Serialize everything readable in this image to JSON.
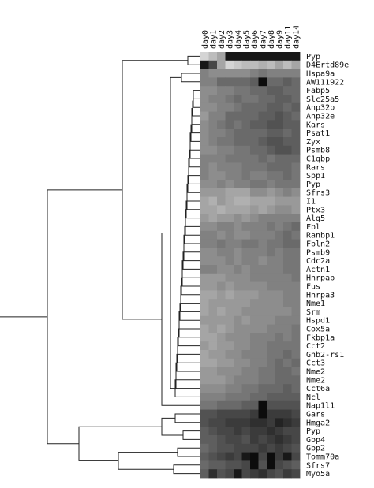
{
  "chart_data": {
    "type": "heatmap",
    "title": "",
    "colormap": "grayscale",
    "columns": [
      "day0",
      "day1",
      "day2",
      "day3",
      "day4",
      "day5",
      "day6",
      "day7",
      "day8",
      "day9",
      "day11",
      "day14"
    ],
    "rows": [
      "Pyp",
      "D4Ertd89e",
      "Hspa9a",
      "AW111922",
      "Fabp5",
      "Slc25a5",
      "Anp32b",
      "Anp32e",
      "Kars",
      "Psat1",
      "Zyx",
      "Psmb8",
      "C1qbp",
      "Rars",
      "Spp1",
      "Pyp",
      "Sfrs3",
      "I1",
      "Ptx3",
      "Alg5",
      "Fbl",
      "Ranbp1",
      "Fbln2",
      "Psmb9",
      "Cdc2a",
      "Actn1",
      "Hnrpab",
      "Fus",
      "Hnrpa3",
      "Nme1",
      "Srm",
      "Hspd1",
      "Cox5a",
      "Fkbp1a",
      "Cct2",
      "Gnb2-rs1",
      "Cct3",
      "Nme2",
      "Nme2",
      "Cct6a",
      "Ncl",
      "Nap1l1",
      "Gars",
      "Hmga2",
      "Pyp",
      "Gbp4",
      "Gbp2",
      "Tomm70a",
      "Sfrs7",
      "Myo5a"
    ],
    "values": [
      [
        0.9,
        0.8,
        0.7,
        0.1,
        0.1,
        0.1,
        0.1,
        0.1,
        0.1,
        0.1,
        0.1,
        0.1
      ],
      [
        0.1,
        0.3,
        0.7,
        0.9,
        0.85,
        0.8,
        0.8,
        0.75,
        0.8,
        0.7,
        0.8,
        0.7
      ],
      [
        0.55,
        0.6,
        0.6,
        0.6,
        0.6,
        0.6,
        0.55,
        0.5,
        0.55,
        0.55,
        0.55,
        0.55
      ],
      [
        0.55,
        0.55,
        0.45,
        0.45,
        0.45,
        0.45,
        0.4,
        0.05,
        0.45,
        0.45,
        0.4,
        0.45
      ],
      [
        0.6,
        0.6,
        0.55,
        0.55,
        0.5,
        0.5,
        0.45,
        0.45,
        0.4,
        0.4,
        0.45,
        0.45
      ],
      [
        0.6,
        0.55,
        0.55,
        0.5,
        0.45,
        0.5,
        0.5,
        0.45,
        0.45,
        0.4,
        0.4,
        0.45
      ],
      [
        0.6,
        0.6,
        0.55,
        0.55,
        0.5,
        0.45,
        0.45,
        0.45,
        0.4,
        0.4,
        0.45,
        0.4
      ],
      [
        0.65,
        0.55,
        0.55,
        0.45,
        0.45,
        0.45,
        0.45,
        0.4,
        0.4,
        0.35,
        0.4,
        0.45
      ],
      [
        0.6,
        0.55,
        0.5,
        0.45,
        0.5,
        0.45,
        0.4,
        0.4,
        0.35,
        0.35,
        0.4,
        0.4
      ],
      [
        0.6,
        0.55,
        0.55,
        0.5,
        0.45,
        0.45,
        0.45,
        0.45,
        0.4,
        0.4,
        0.45,
        0.4
      ],
      [
        0.6,
        0.55,
        0.5,
        0.5,
        0.45,
        0.45,
        0.45,
        0.4,
        0.35,
        0.35,
        0.4,
        0.4
      ],
      [
        0.6,
        0.6,
        0.55,
        0.55,
        0.5,
        0.5,
        0.45,
        0.45,
        0.4,
        0.35,
        0.35,
        0.4
      ],
      [
        0.55,
        0.55,
        0.55,
        0.5,
        0.5,
        0.5,
        0.5,
        0.45,
        0.5,
        0.45,
        0.45,
        0.45
      ],
      [
        0.55,
        0.6,
        0.55,
        0.55,
        0.55,
        0.5,
        0.5,
        0.5,
        0.45,
        0.45,
        0.45,
        0.5
      ],
      [
        0.55,
        0.6,
        0.6,
        0.55,
        0.55,
        0.5,
        0.55,
        0.55,
        0.5,
        0.5,
        0.45,
        0.5
      ],
      [
        0.6,
        0.6,
        0.55,
        0.6,
        0.55,
        0.55,
        0.5,
        0.5,
        0.55,
        0.5,
        0.5,
        0.5
      ],
      [
        0.65,
        0.65,
        0.65,
        0.7,
        0.7,
        0.7,
        0.6,
        0.6,
        0.65,
        0.6,
        0.55,
        0.6
      ],
      [
        0.7,
        0.75,
        0.65,
        0.7,
        0.75,
        0.75,
        0.7,
        0.7,
        0.7,
        0.65,
        0.65,
        0.65
      ],
      [
        0.7,
        0.7,
        0.75,
        0.7,
        0.7,
        0.7,
        0.65,
        0.7,
        0.65,
        0.6,
        0.6,
        0.65
      ],
      [
        0.65,
        0.7,
        0.65,
        0.65,
        0.6,
        0.65,
        0.6,
        0.55,
        0.55,
        0.55,
        0.55,
        0.55
      ],
      [
        0.6,
        0.6,
        0.55,
        0.55,
        0.6,
        0.55,
        0.55,
        0.55,
        0.5,
        0.55,
        0.5,
        0.45
      ],
      [
        0.55,
        0.55,
        0.6,
        0.55,
        0.6,
        0.6,
        0.55,
        0.55,
        0.55,
        0.5,
        0.45,
        0.5
      ],
      [
        0.55,
        0.55,
        0.5,
        0.55,
        0.55,
        0.5,
        0.5,
        0.55,
        0.5,
        0.5,
        0.45,
        0.45
      ],
      [
        0.6,
        0.6,
        0.55,
        0.55,
        0.6,
        0.55,
        0.55,
        0.55,
        0.5,
        0.55,
        0.5,
        0.5
      ],
      [
        0.6,
        0.6,
        0.6,
        0.55,
        0.6,
        0.55,
        0.55,
        0.6,
        0.55,
        0.55,
        0.5,
        0.5
      ],
      [
        0.55,
        0.55,
        0.6,
        0.6,
        0.55,
        0.6,
        0.55,
        0.55,
        0.55,
        0.55,
        0.5,
        0.5
      ],
      [
        0.65,
        0.65,
        0.65,
        0.6,
        0.6,
        0.6,
        0.55,
        0.55,
        0.55,
        0.55,
        0.55,
        0.5
      ],
      [
        0.65,
        0.65,
        0.6,
        0.65,
        0.6,
        0.6,
        0.6,
        0.6,
        0.55,
        0.55,
        0.55,
        0.55
      ],
      [
        0.7,
        0.7,
        0.65,
        0.7,
        0.65,
        0.65,
        0.65,
        0.6,
        0.6,
        0.6,
        0.55,
        0.55
      ],
      [
        0.7,
        0.65,
        0.65,
        0.65,
        0.65,
        0.65,
        0.6,
        0.6,
        0.6,
        0.6,
        0.55,
        0.55
      ],
      [
        0.7,
        0.65,
        0.7,
        0.65,
        0.65,
        0.6,
        0.6,
        0.6,
        0.6,
        0.6,
        0.6,
        0.55
      ],
      [
        0.65,
        0.65,
        0.65,
        0.65,
        0.6,
        0.65,
        0.6,
        0.6,
        0.6,
        0.55,
        0.55,
        0.55
      ],
      [
        0.7,
        0.65,
        0.7,
        0.65,
        0.6,
        0.6,
        0.6,
        0.6,
        0.55,
        0.55,
        0.55,
        0.5
      ],
      [
        0.7,
        0.7,
        0.65,
        0.6,
        0.6,
        0.6,
        0.55,
        0.55,
        0.55,
        0.5,
        0.55,
        0.5
      ],
      [
        0.65,
        0.7,
        0.65,
        0.65,
        0.6,
        0.6,
        0.55,
        0.55,
        0.5,
        0.5,
        0.5,
        0.5
      ],
      [
        0.7,
        0.65,
        0.65,
        0.6,
        0.6,
        0.55,
        0.55,
        0.55,
        0.5,
        0.5,
        0.45,
        0.5
      ],
      [
        0.7,
        0.7,
        0.65,
        0.65,
        0.6,
        0.6,
        0.55,
        0.55,
        0.5,
        0.45,
        0.5,
        0.45
      ],
      [
        0.65,
        0.65,
        0.6,
        0.6,
        0.6,
        0.55,
        0.55,
        0.5,
        0.5,
        0.45,
        0.45,
        0.5
      ],
      [
        0.65,
        0.65,
        0.65,
        0.6,
        0.55,
        0.55,
        0.55,
        0.5,
        0.5,
        0.45,
        0.45,
        0.45
      ],
      [
        0.6,
        0.6,
        0.6,
        0.55,
        0.55,
        0.5,
        0.5,
        0.45,
        0.45,
        0.45,
        0.4,
        0.45
      ],
      [
        0.55,
        0.55,
        0.55,
        0.5,
        0.5,
        0.5,
        0.45,
        0.45,
        0.4,
        0.4,
        0.4,
        0.4
      ],
      [
        0.5,
        0.5,
        0.45,
        0.45,
        0.45,
        0.4,
        0.4,
        0.05,
        0.35,
        0.35,
        0.35,
        0.35
      ],
      [
        0.35,
        0.35,
        0.3,
        0.3,
        0.3,
        0.3,
        0.25,
        0.05,
        0.25,
        0.25,
        0.25,
        0.3
      ],
      [
        0.35,
        0.3,
        0.3,
        0.25,
        0.25,
        0.25,
        0.2,
        0.2,
        0.25,
        0.15,
        0.2,
        0.25
      ],
      [
        0.4,
        0.35,
        0.3,
        0.3,
        0.25,
        0.3,
        0.25,
        0.25,
        0.2,
        0.25,
        0.3,
        0.3
      ],
      [
        0.4,
        0.4,
        0.35,
        0.3,
        0.3,
        0.35,
        0.25,
        0.3,
        0.25,
        0.2,
        0.25,
        0.3
      ],
      [
        0.45,
        0.4,
        0.35,
        0.35,
        0.3,
        0.3,
        0.3,
        0.25,
        0.3,
        0.25,
        0.3,
        0.35
      ],
      [
        0.4,
        0.35,
        0.3,
        0.25,
        0.3,
        0.1,
        0.05,
        0.3,
        0.05,
        0.25,
        0.1,
        0.3
      ],
      [
        0.45,
        0.4,
        0.4,
        0.35,
        0.35,
        0.3,
        0.05,
        0.35,
        0.05,
        0.3,
        0.35,
        0.4
      ],
      [
        0.4,
        0.2,
        0.35,
        0.3,
        0.1,
        0.3,
        0.25,
        0.2,
        0.3,
        0.35,
        0.25,
        0.3
      ]
    ]
  }
}
